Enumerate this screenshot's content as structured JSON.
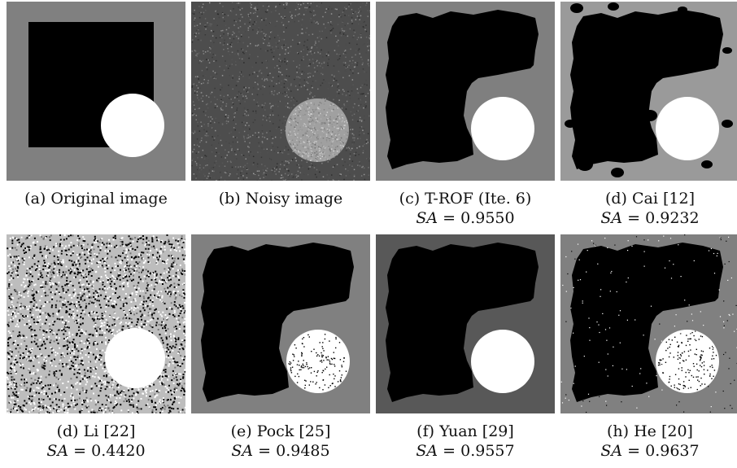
{
  "figure": {
    "panels": [
      {
        "id": "a",
        "caption": "(a) Original image",
        "metric": "",
        "metric_value": "",
        "render": "original",
        "bg": "#808080"
      },
      {
        "id": "b",
        "caption": "(b) Noisy image",
        "metric": "",
        "metric_value": "",
        "render": "noisy",
        "bg": "#555555"
      },
      {
        "id": "c",
        "caption": "(c) T-ROF (Ite. 6)",
        "metric": "SA",
        "metric_value": "= 0.9550",
        "render": "blob",
        "bg": "#7f7f7f"
      },
      {
        "id": "d",
        "caption": "(d) Cai [12]",
        "metric": "SA",
        "metric_value": "= 0.9232",
        "render": "cai",
        "bg": "#9a9a9a"
      },
      {
        "id": "d2",
        "caption": "(d) Li [22]",
        "metric": "SA",
        "metric_value": "= 0.4420",
        "render": "li",
        "bg": "#ffffff"
      },
      {
        "id": "e",
        "caption": "(e) Pock [25]",
        "metric": "SA",
        "metric_value": "= 0.9485",
        "render": "pock",
        "bg": "#808080"
      },
      {
        "id": "f",
        "caption": "(f) Yuan [29]",
        "metric": "SA",
        "metric_value": "= 0.9557",
        "render": "blob",
        "bg": "#585858"
      },
      {
        "id": "h",
        "caption": "(h) He [20]",
        "metric": "SA",
        "metric_value": "= 0.9637",
        "render": "he",
        "bg": "#808080"
      }
    ]
  }
}
